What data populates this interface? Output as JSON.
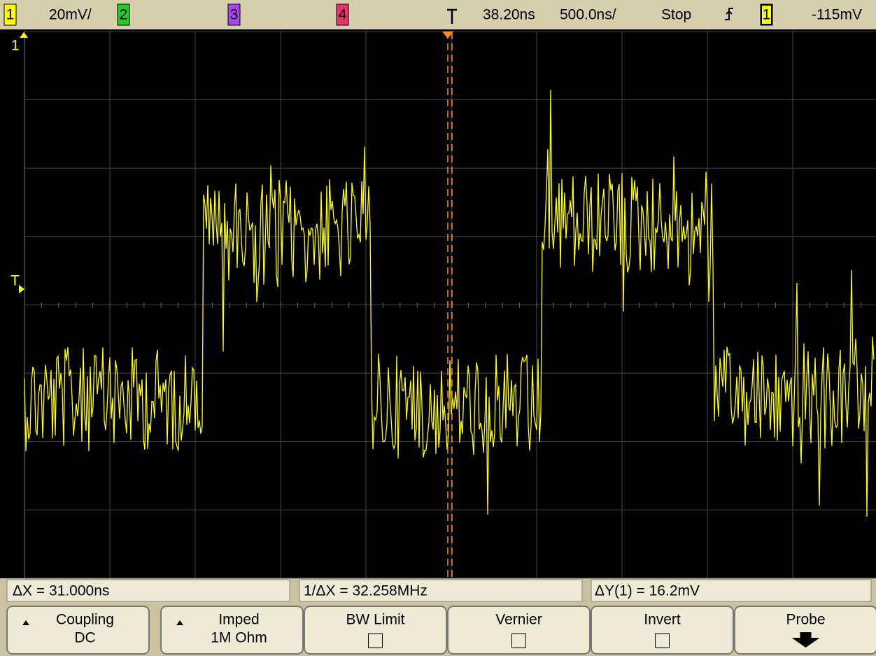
{
  "top_bar": {
    "ch1_label": "1",
    "ch1_scale": "20mV/",
    "ch2_label": "2",
    "ch3_label": "3",
    "ch4_label": "4",
    "delay": "38.20ns",
    "time_scale": "500.0ns/",
    "run_state": "Stop",
    "trigger_source": "1",
    "trigger_level": "-115mV"
  },
  "screen": {
    "ground_marker": "1",
    "trigger_marker": "T"
  },
  "measurements": [
    "ΔX = 31.000ns",
    "1/ΔX = 32.258MHz",
    "ΔY(1) = 16.2mV"
  ],
  "softkeys": [
    {
      "label": "Coupling",
      "value": "DC"
    },
    {
      "label": "Imped",
      "value": "1M Ohm"
    },
    {
      "label": "BW Limit"
    },
    {
      "label": "Vernier"
    },
    {
      "label": "Invert"
    },
    {
      "label": "Probe"
    }
  ]
}
